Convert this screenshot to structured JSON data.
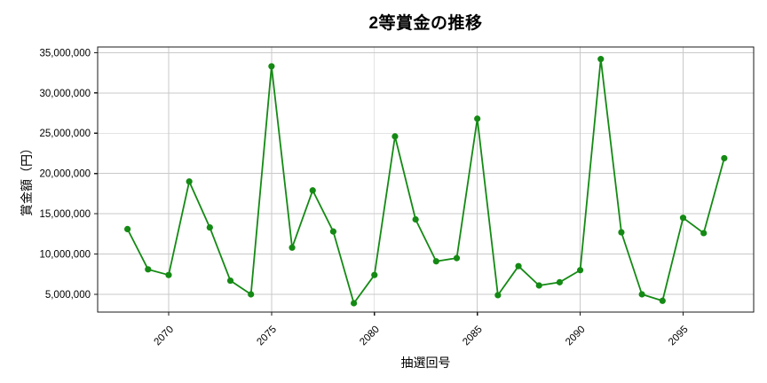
{
  "chart_data": {
    "type": "line",
    "title": "2等賞金の推移",
    "xlabel": "抽選回号",
    "ylabel": "賞金額（円）",
    "x": [
      2068,
      2069,
      2070,
      2071,
      2072,
      2073,
      2074,
      2075,
      2076,
      2077,
      2078,
      2079,
      2080,
      2081,
      2082,
      2083,
      2084,
      2085,
      2086,
      2087,
      2088,
      2089,
      2090,
      2091,
      2092,
      2093,
      2094,
      2095,
      2096,
      2097
    ],
    "series": [
      {
        "name": "2等賞金",
        "values": [
          13100000,
          8100000,
          7400000,
          19000000,
          13300000,
          6700000,
          5000000,
          33300000,
          10800000,
          17900000,
          12800000,
          3900000,
          7400000,
          24600000,
          14300000,
          9100000,
          9500000,
          26800000,
          4900000,
          8500000,
          6100000,
          6500000,
          8000000,
          34200000,
          12700000,
          5000000,
          4200000,
          14500000,
          12600000,
          21900000
        ]
      }
    ],
    "xlim": [
      2066.55,
      2098.43
    ],
    "ylim": [
      2800000,
      35700000
    ],
    "xticks": [
      2070,
      2075,
      2080,
      2085,
      2090,
      2095
    ],
    "yticks": [
      5000000,
      10000000,
      15000000,
      20000000,
      25000000,
      30000000,
      35000000
    ],
    "grid": true,
    "legend": "none",
    "line_color": "#148a14",
    "marker": "circle",
    "grid_color": "#c9c9c9",
    "axis_color": "#1a1a1a"
  }
}
